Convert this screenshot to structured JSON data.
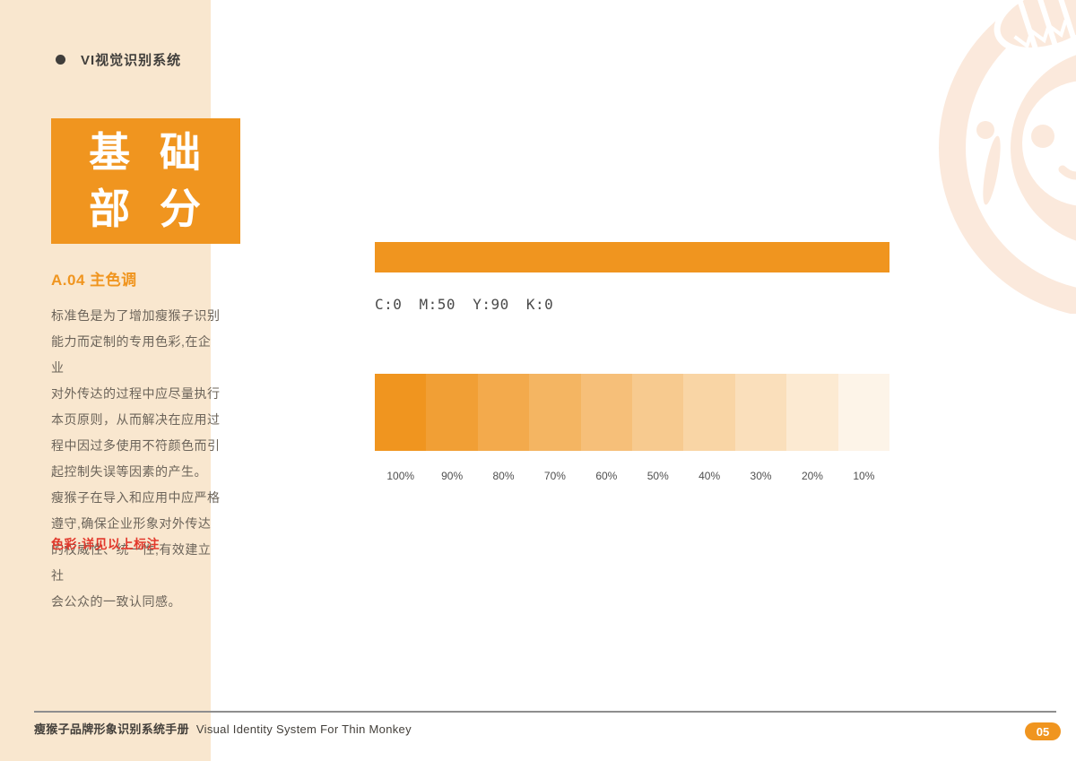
{
  "header": {
    "title": "VI视觉识别系统"
  },
  "sidebar": {
    "title_box": {
      "line1": "基 础",
      "line2": "部 分"
    },
    "section_title": "A.04 主色调",
    "body_lines": [
      "标准色是为了增加瘦猴子识别",
      "能力而定制的专用色彩,在企业",
      "对外传达的过程中应尽量执行",
      "本页原则，从而解决在应用过",
      "程中因过多使用不符颜色而引",
      "起控制失误等因素的产生。",
      "瘦猴子在导入和应用中应严格",
      "遵守,确保企业形象对外传达",
      "的权威性、统一性,有效建立社",
      "会公众的一致认同感。"
    ],
    "note": "色彩:详见以上标注"
  },
  "main": {
    "cmyk_label": "C:0 M:50 Y:90 K:0",
    "primary_color": "#F0951F",
    "tint_scale": [
      {
        "label": "100%",
        "opacity": 1.0
      },
      {
        "label": "90%",
        "opacity": 0.9
      },
      {
        "label": "80%",
        "opacity": 0.8
      },
      {
        "label": "70%",
        "opacity": 0.7
      },
      {
        "label": "60%",
        "opacity": 0.6
      },
      {
        "label": "50%",
        "opacity": 0.5
      },
      {
        "label": "40%",
        "opacity": 0.4
      },
      {
        "label": "30%",
        "opacity": 0.3
      },
      {
        "label": "20%",
        "opacity": 0.2
      },
      {
        "label": "10%",
        "opacity": 0.1
      }
    ]
  },
  "footer": {
    "manual_title_zh": "瘦猴子品牌形象识别系统手册",
    "manual_title_en": "Visual Identity System For Thin Monkey",
    "page_number": "05"
  },
  "colors": {
    "accent_orange": "#F0951F",
    "sidebar_beige": "#F9E7CF",
    "watermark_peach": "#FBE9DC",
    "note_red": "#E2392C"
  }
}
